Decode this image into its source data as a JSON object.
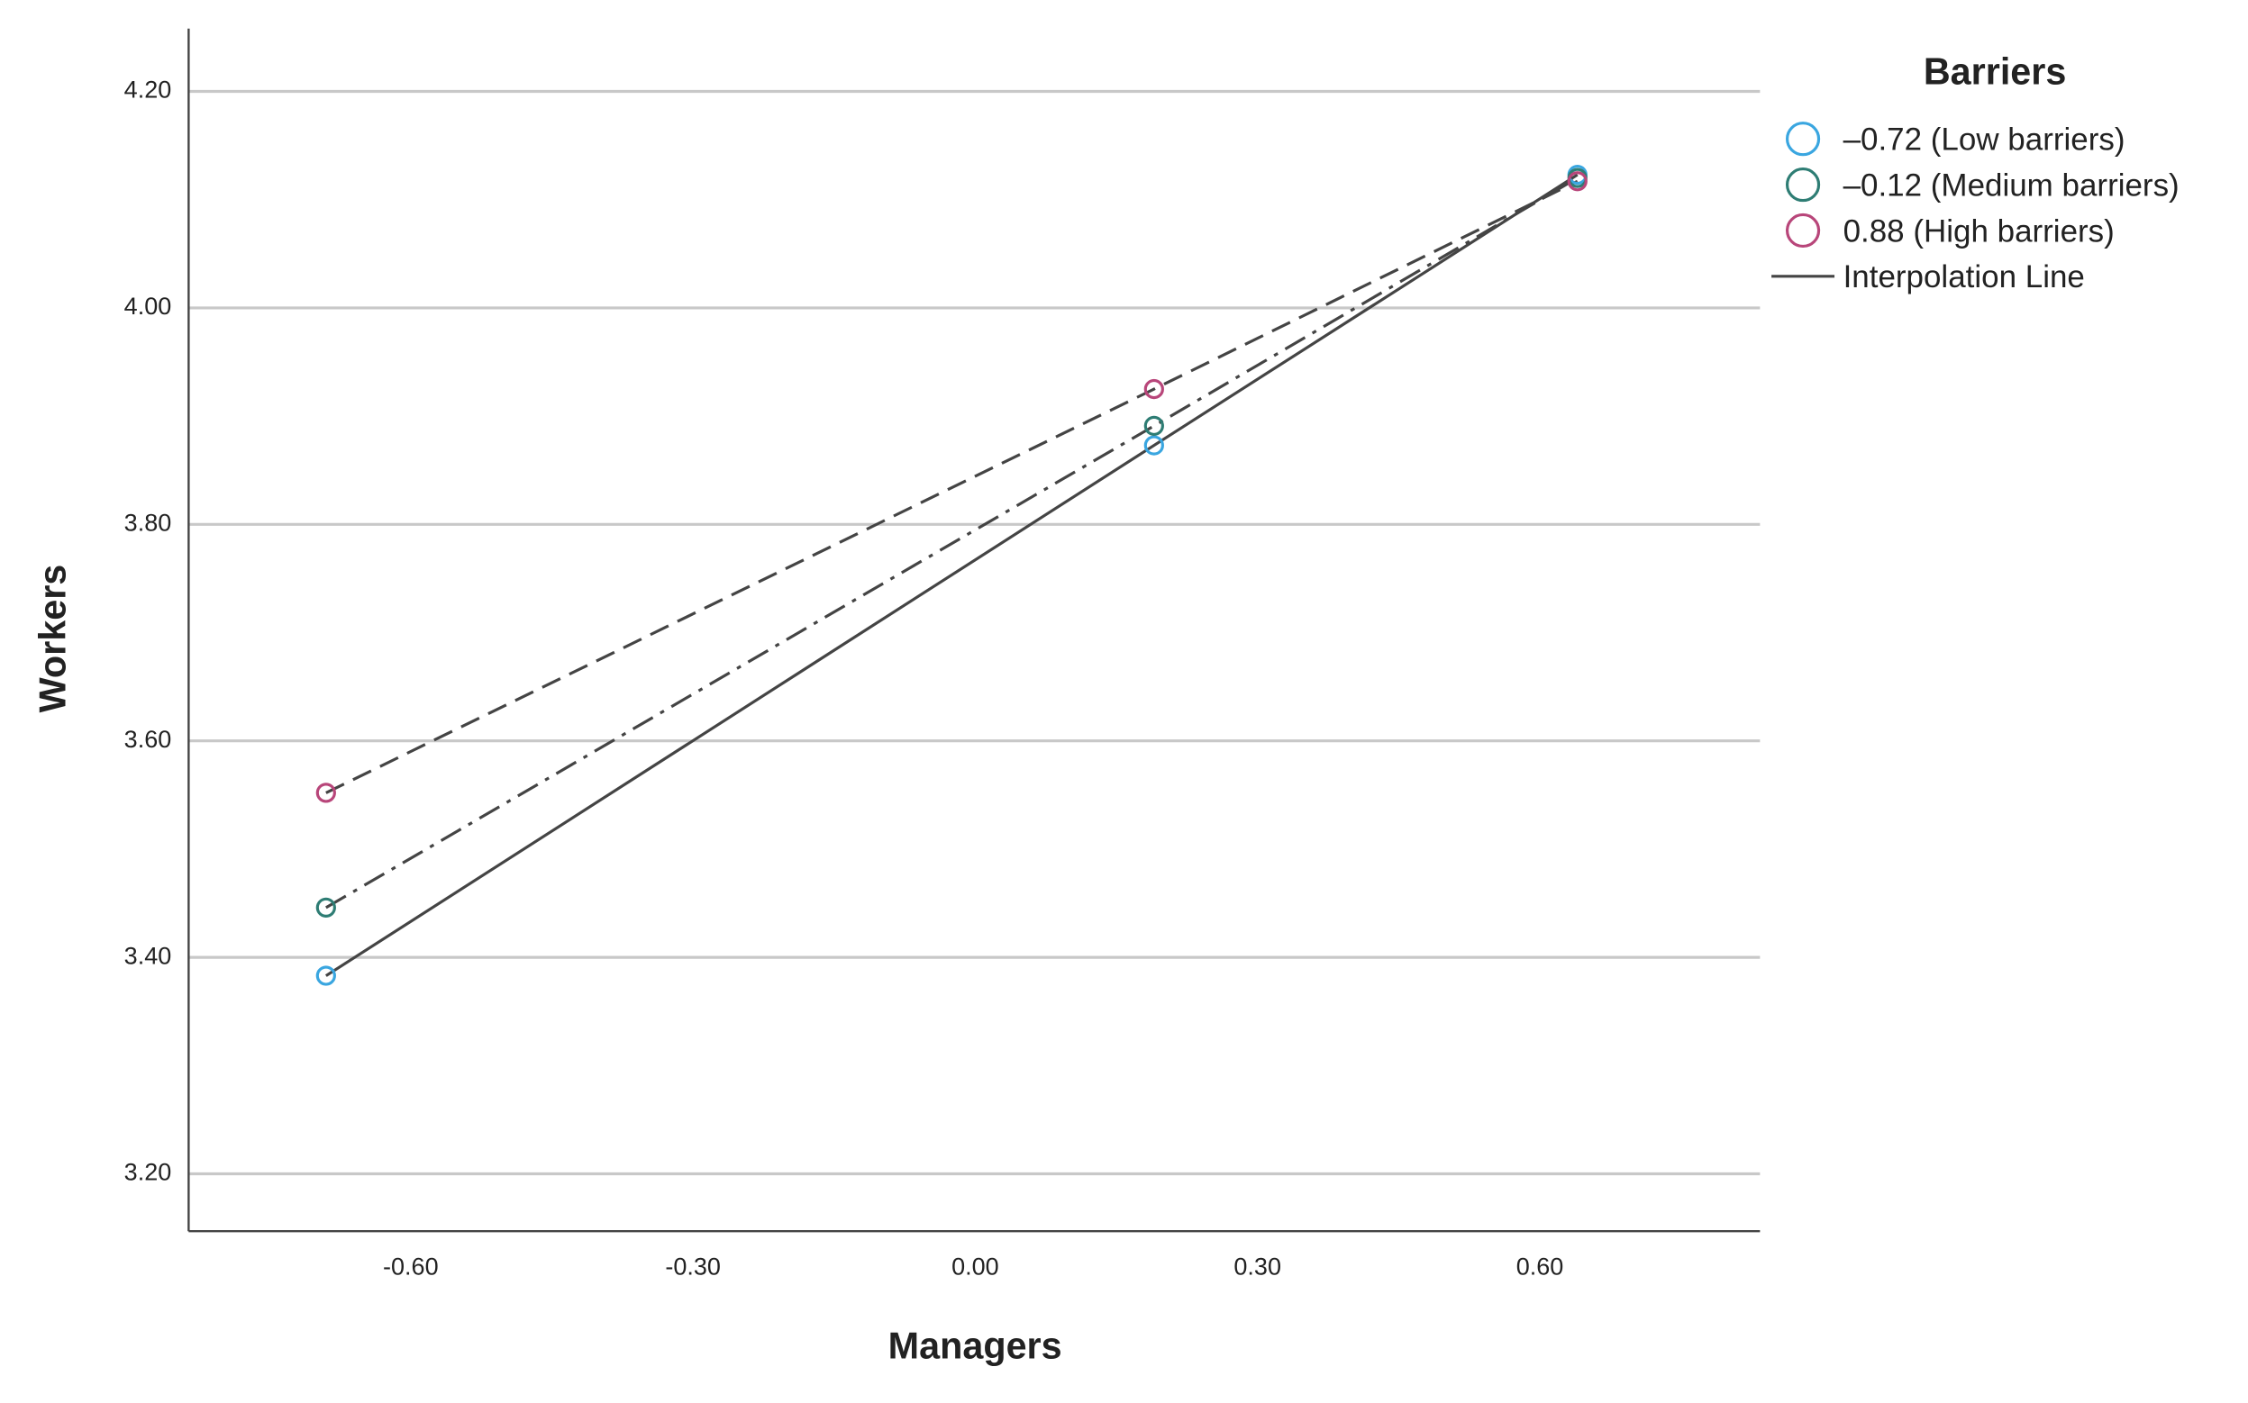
{
  "chart_data": {
    "type": "line",
    "x_label": "Managers",
    "y_label": "Workers",
    "legend_title": "Barriers",
    "interpolation_line_label": "Interpolation Line",
    "legend_position": "right",
    "grid": true,
    "x": [
      -0.69,
      0.19,
      0.64
    ],
    "xlim": [
      -0.836,
      0.834
    ],
    "xticks": [
      {
        "value": -0.6,
        "label": "-0.60"
      },
      {
        "value": -0.3,
        "label": "-0.30"
      },
      {
        "value": 0,
        "label": "0.00"
      },
      {
        "value": 0.3,
        "label": "0.30"
      },
      {
        "value": 0.6,
        "label": "0.60"
      }
    ],
    "ylim": [
      3.147,
      4.258
    ],
    "yticks": [
      {
        "value": 3.2,
        "label": "3.20"
      },
      {
        "value": 3.4,
        "label": "3.40"
      },
      {
        "value": 3.6,
        "label": "3.60"
      },
      {
        "value": 3.8,
        "label": "3.80"
      },
      {
        "value": 4.0,
        "label": "4.00"
      },
      {
        "value": 4.2,
        "label": "4.20"
      }
    ],
    "line_color": "#444444",
    "series": [
      {
        "name": "–0.72 (Low barriers)",
        "color": "#3aa6e0",
        "line_style": "solid",
        "values": [
          3.383,
          3.873,
          4.123
        ]
      },
      {
        "name": "–0.12 (Medium barriers)",
        "color": "#2e7d74",
        "line_style": "dashdot",
        "values": [
          3.446,
          3.891,
          4.12
        ]
      },
      {
        "name": "0.88 (High barriers)",
        "color": "#b8467a",
        "line_style": "dash",
        "values": [
          3.552,
          3.925,
          4.117
        ]
      }
    ]
  }
}
